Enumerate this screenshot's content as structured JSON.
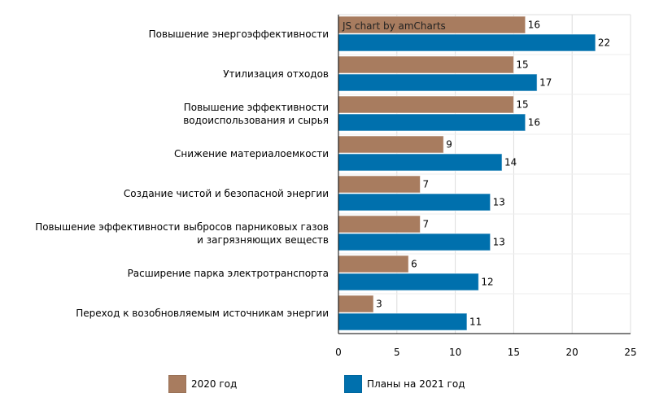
{
  "credit": "JS chart by amCharts",
  "colors": {
    "2020": "#a87c5f",
    "2021": "#0070ad",
    "grid": "#dcdcdc",
    "axis": "#000000"
  },
  "chart_data": {
    "type": "bar",
    "orientation": "horizontal",
    "title": "",
    "xlabel": "",
    "ylabel": "",
    "xlim": [
      0,
      25
    ],
    "xticks": [
      0,
      5,
      10,
      15,
      20,
      25
    ],
    "grid": true,
    "legend_position": "bottom",
    "categories": [
      [
        "Повышение энергоэффективности"
      ],
      [
        "Утилизация отходов"
      ],
      [
        "Повышение эффективности",
        "водоиспользования и сырья"
      ],
      [
        "Снижение материалоемкости"
      ],
      [
        "Создание чистой и безопасной энергии"
      ],
      [
        "Повышение эффективности выбросов парниковых газов",
        "и загрязняющих веществ"
      ],
      [
        "Расширение парка электротранспорта"
      ],
      [
        "Переход к возобновляемым источникам энергии"
      ]
    ],
    "series": [
      {
        "name": "2020 год",
        "color": "#a87c5f",
        "values": [
          16,
          15,
          15,
          9,
          7,
          7,
          6,
          3
        ]
      },
      {
        "name": "Планы на 2021 год",
        "color": "#0070ad",
        "values": [
          22,
          17,
          16,
          14,
          13,
          13,
          12,
          11
        ]
      }
    ]
  }
}
